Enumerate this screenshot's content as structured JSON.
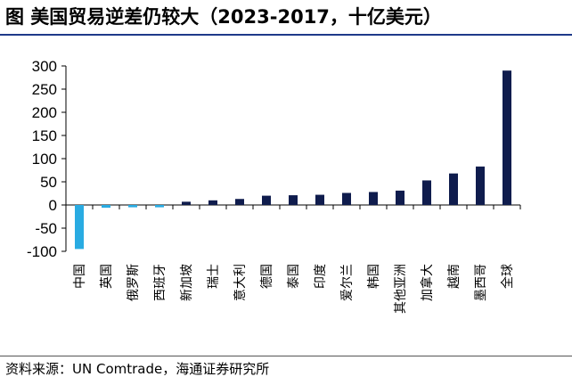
{
  "title": "图 美国贸易逆差仍较大（2023-2017，十亿美元）",
  "source": "资料来源：UN Comtrade，海通证券研究所",
  "chart_data": {
    "type": "bar",
    "title": "美国贸易逆差仍较大（2023-2017，十亿美元）",
    "categories": [
      "中国",
      "英国",
      "俄罗斯",
      "西班牙",
      "新加坡",
      "瑞士",
      "意大利",
      "德国",
      "泰国",
      "印度",
      "爱尔兰",
      "韩国",
      "其他亚洲",
      "加拿大",
      "越南",
      "墨西哥",
      "全球"
    ],
    "values": [
      -95,
      -6,
      -5,
      -5,
      7,
      10,
      13,
      20,
      21,
      22,
      26,
      28,
      31,
      53,
      68,
      83,
      290
    ],
    "highlight_color": "#29abe2",
    "default_color": "#0f1c4d",
    "highlight_rule": "negative values",
    "ylim": [
      -100,
      300
    ],
    "yticks": [
      -100,
      -50,
      0,
      50,
      100,
      150,
      200,
      250,
      300
    ],
    "grid": false,
    "xlabel": "",
    "ylabel": ""
  }
}
